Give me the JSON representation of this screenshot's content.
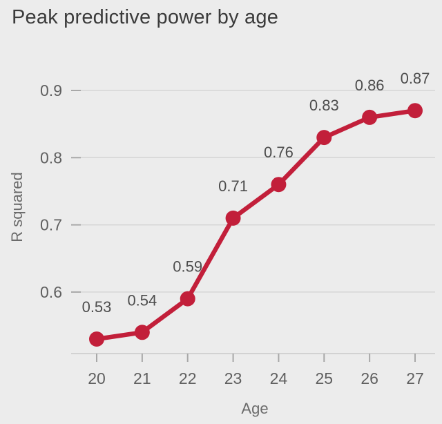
{
  "title": "Peak predictive power by age",
  "chart_data": {
    "type": "line",
    "title": "Peak predictive power by age",
    "xlabel": "Age",
    "ylabel": "R squared",
    "x": [
      20,
      21,
      22,
      23,
      24,
      25,
      26,
      27
    ],
    "values": [
      0.53,
      0.54,
      0.59,
      0.71,
      0.76,
      0.83,
      0.86,
      0.87
    ],
    "point_labels": [
      "0.53",
      "0.54",
      "0.59",
      "0.71",
      "0.76",
      "0.83",
      "0.86",
      "0.87"
    ],
    "xticks": [
      "20",
      "21",
      "22",
      "23",
      "24",
      "25",
      "26",
      "27"
    ],
    "yticks": [
      "0.6",
      "0.7",
      "0.8",
      "0.9"
    ],
    "ytick_values": [
      0.6,
      0.7,
      0.8,
      0.9
    ],
    "ylim": [
      0.505,
      0.925
    ],
    "grid": "horizontal",
    "legend": "none",
    "colors": {
      "line": "#c21f3a",
      "marker": "#c21f3a",
      "background": "#ececec",
      "gridline": "#d5d5d5",
      "axis_line": "#c9c9c9",
      "tick_mark": "#a8a8a8",
      "title_text": "#3b3b3b",
      "tick_text": "#5f5f5f",
      "point_label_text": "#4d4d4d"
    }
  }
}
